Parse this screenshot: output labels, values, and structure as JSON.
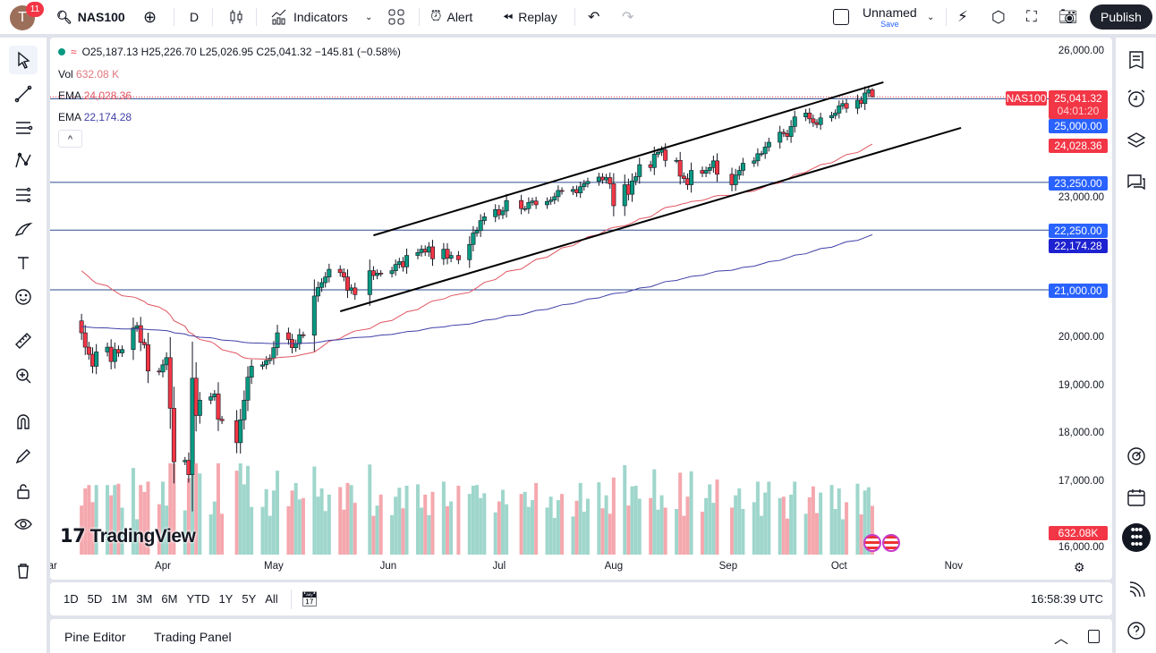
{
  "header": {
    "avatar_letter": "T",
    "notifications": "11",
    "symbol": "NAS100",
    "interval": "D",
    "indicators_label": "Indicators",
    "alert_label": "Alert",
    "replay_label": "Replay",
    "layout_name": "Unnamed",
    "save_label": "Save",
    "publish_label": "Publish"
  },
  "legend": {
    "ohlc": "O25,187.13 H25,226.70 L25,026.95 C25,041.32 −145.81 (−0.58%)",
    "vol_label": "Vol",
    "vol_value": "632.08 K",
    "ema1_label": "EMA",
    "ema1_value": "24,028.36",
    "ema2_label": "EMA",
    "ema2_value": "22,174.28"
  },
  "price_scale": {
    "ticks": [
      "26,000.00",
      "23,000.00",
      "20,000.00",
      "19,000.00",
      "18,000.00",
      "17,000.00",
      "16,000.00"
    ],
    "symbol_tag": "NAS100",
    "last_price": "25,041.32",
    "countdown": "04:01:20",
    "labels": [
      {
        "text": "25,000.00",
        "price": 25000,
        "color": "#2962ff"
      },
      {
        "text": "24,028.36",
        "price": 24028.36,
        "color": "#f23645"
      },
      {
        "text": "23,250.00",
        "price": 23250,
        "color": "#2962ff"
      },
      {
        "text": "22,250.00",
        "price": 22250,
        "color": "#2962ff"
      },
      {
        "text": "22,174.28",
        "price": 22174.28,
        "color": "#1e22d0"
      },
      {
        "text": "21,000.00",
        "price": 21000,
        "color": "#2962ff"
      }
    ],
    "volume_label": "632.08K"
  },
  "time_axis": {
    "months": [
      "Mar",
      "Apr",
      "May",
      "Jun",
      "Jul",
      "Aug",
      "Sep",
      "Oct",
      "Nov"
    ]
  },
  "range_buttons": [
    "1D",
    "5D",
    "1M",
    "3M",
    "6M",
    "YTD",
    "1Y",
    "5Y",
    "All"
  ],
  "clock": "16:58:39 UTC",
  "bottom_panel": {
    "tabs": [
      "Pine Editor",
      "Trading Panel"
    ]
  },
  "watermark": "TradingView",
  "colors": {
    "up": "#089981",
    "down": "#f23645",
    "ema_fast": "#e05561",
    "ema_slow": "#3f3fa8",
    "hline": "#2a4b8d",
    "trendline": "#000000"
  },
  "chart_data": {
    "type": "candlestick",
    "symbol": "NAS100",
    "interval": "D",
    "first_date": "2025-03-10",
    "closes": [
      20100,
      19800,
      19650,
      19400,
      19700,
      19800,
      19500,
      19750,
      19680,
      19750,
      20200,
      20250,
      19900,
      19850,
      19300,
      19280,
      19430,
      19580,
      18520,
      17400,
      17430,
      17130,
      19150,
      18370,
      18690,
      18760,
      18820,
      18290,
      18260,
      17800,
      18280,
      18690,
      19170,
      19400,
      19430,
      19520,
      19570,
      19790,
      20100,
      19960,
      19790,
      19870,
      20060,
      20050,
      20870,
      21050,
      21150,
      21270,
      21430,
      21360,
      21270,
      20990,
      21040,
      20900,
      21400,
      21300,
      21350,
      21340,
      21400,
      21530,
      21590,
      21480,
      21720,
      21780,
      21850,
      21790,
      21900,
      21650,
      21850,
      21660,
      21720,
      21630,
      21950,
      22190,
      22240,
      22450,
      22530,
      22680,
      22570,
      22650,
      22870,
      22700,
      22700,
      22830,
      22860,
      22780,
      22850,
      22880,
      22950,
      23080,
      23060,
      23100,
      23030,
      23160,
      23220,
      23270,
      23360,
      23300,
      23350,
      23220,
      22760,
      23200,
      23000,
      23280,
      23370,
      23620,
      23560,
      23840,
      23880,
      23930,
      23710,
      23710,
      23380,
      23330,
      23200,
      23500,
      23440,
      23500,
      23560,
      23700,
      23420,
      23200,
      23400,
      23500,
      23650,
      23700,
      23850,
      23850,
      23990,
      24090,
      24300,
      24270,
      24210,
      24420,
      24620,
      24700,
      24580,
      24500,
      24460,
      24600,
      24650,
      24700,
      24850,
      24900,
      24800,
      24970,
      24900,
      25120,
      25187,
      25041.32
    ],
    "last_candle": {
      "open": 25187.13,
      "high": 25226.7,
      "low": 25026.95,
      "close": 25041.32,
      "volume": "632.08K"
    },
    "ema_fast_last": 24028.36,
    "ema_slow_last": 22174.28,
    "horizontal_levels": [
      25000,
      23250,
      22250,
      21000
    ],
    "trendlines": [
      {
        "from": {
          "date": "2025-05-28",
          "price": 22140
        },
        "to": {
          "date": "2025-10-13",
          "price": 25345
        }
      },
      {
        "from": {
          "date": "2025-05-19",
          "price": 20550
        },
        "to": {
          "date": "2025-11-03",
          "price": 24390
        }
      }
    ],
    "ylim": [
      16000,
      26000
    ]
  }
}
